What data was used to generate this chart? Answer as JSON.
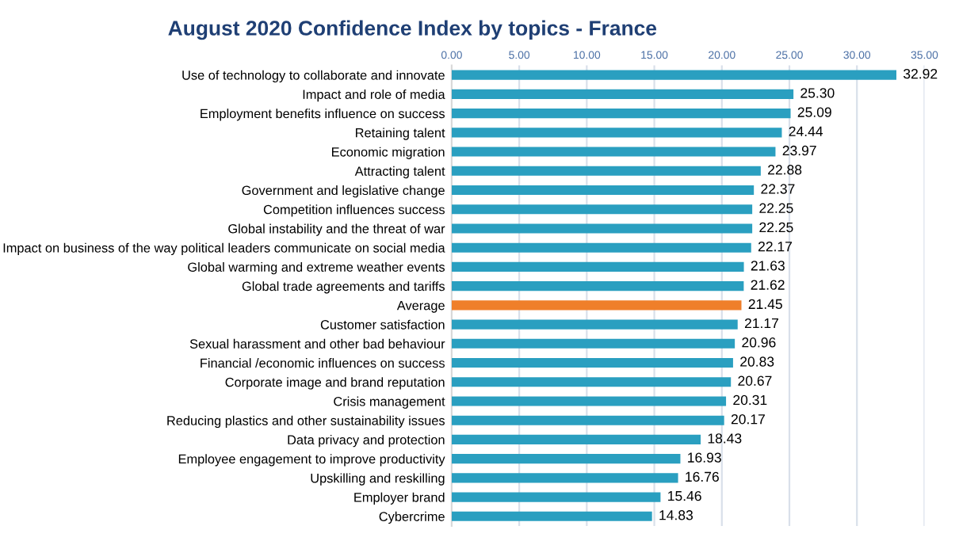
{
  "chart_data": {
    "type": "bar",
    "orientation": "horizontal",
    "title": "August 2020 Confidence Index by topics - France",
    "categories": [
      "Use of technology to collaborate and innovate",
      "Impact and role of media",
      "Employment benefits influence on success",
      "Retaining talent",
      "Economic migration",
      "Attracting talent",
      "Government and legislative change",
      "Competition influences success",
      "Global instability and the threat of war",
      "Impact on business of the way political leaders communicate on social media",
      "Global warming and extreme weather events",
      "Global trade agreements and tariffs",
      "Average",
      "Customer satisfaction",
      "Sexual harassment and other bad behaviour",
      "Financial /economic influences on success",
      "Corporate image and brand reputation",
      "Crisis management",
      "Reducing plastics and other sustainability issues",
      "Data privacy and protection",
      "Employee engagement to improve productivity",
      "Upskilling and reskilling",
      "Employer brand",
      "Cybercrime"
    ],
    "values": [
      32.92,
      25.3,
      25.09,
      24.44,
      23.97,
      22.88,
      22.37,
      22.25,
      22.25,
      22.17,
      21.63,
      21.62,
      21.45,
      21.17,
      20.96,
      20.83,
      20.67,
      20.31,
      20.17,
      18.43,
      16.93,
      16.76,
      15.46,
      14.83
    ],
    "value_labels": [
      "32.92",
      "25.30",
      "25.09",
      "24.44",
      "23.97",
      "22.88",
      "22.37",
      "22.25",
      "22.25",
      "22.17",
      "21.63",
      "21.62",
      "21.45",
      "21.17",
      "20.96",
      "20.83",
      "20.67",
      "20.31",
      "20.17",
      "18.43",
      "16.93",
      "16.76",
      "15.46",
      "14.83"
    ],
    "colors": [
      "#2a9fc0",
      "#2a9fc0",
      "#2a9fc0",
      "#2a9fc0",
      "#2a9fc0",
      "#2a9fc0",
      "#2a9fc0",
      "#2a9fc0",
      "#2a9fc0",
      "#2a9fc0",
      "#2a9fc0",
      "#2a9fc0",
      "#ef7f2a",
      "#2a9fc0",
      "#2a9fc0",
      "#2a9fc0",
      "#2a9fc0",
      "#2a9fc0",
      "#2a9fc0",
      "#2a9fc0",
      "#2a9fc0",
      "#2a9fc0",
      "#2a9fc0",
      "#2a9fc0"
    ],
    "xlim": [
      0,
      35
    ],
    "xticks": [
      {
        "value": 0,
        "label": "0.00"
      },
      {
        "value": 5,
        "label": "5.00"
      },
      {
        "value": 10,
        "label": "10.00"
      },
      {
        "value": 15,
        "label": "15.00"
      },
      {
        "value": 20,
        "label": "20.00"
      },
      {
        "value": 25,
        "label": "25.00"
      },
      {
        "value": 30,
        "label": "30.00"
      },
      {
        "value": 35,
        "label": "35.00"
      }
    ],
    "grid": "x"
  }
}
